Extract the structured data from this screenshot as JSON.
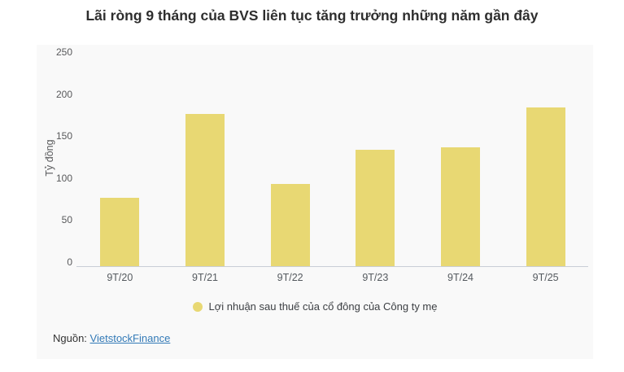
{
  "title": "Lãi ròng 9 tháng của BVS liên tục tăng trưởng những năm gần đây",
  "chart_data": {
    "type": "bar",
    "categories": [
      "9T/20",
      "9T/21",
      "9T/22",
      "9T/23",
      "9T/24",
      "9T/25"
    ],
    "values": [
      82,
      181,
      98,
      139,
      142,
      189
    ],
    "title": "Lãi ròng 9 tháng của BVS liên tục tăng trưởng những năm gần đây",
    "xlabel": "",
    "ylabel": "Tỷ đồng",
    "ylim": [
      0,
      250
    ],
    "yticks": [
      0,
      50,
      100,
      150,
      200,
      250
    ],
    "grid": false,
    "bar_color": "#e8d873",
    "legend_position": "bottom",
    "series_name": "Lợi nhuận sau thuế của cổ đông của Công ty mẹ"
  },
  "legend": {
    "label": "Lợi nhuận sau thuế của cổ đông của Công ty mẹ",
    "marker_color": "#e8d873"
  },
  "source": {
    "prefix": "Nguồn:",
    "link_label": "VietstockFinance",
    "link_color": "#337ab7"
  },
  "colors": {
    "bar": "#e8d873",
    "panel_background": "#f9f9f9",
    "axis_line": "#c9ced6",
    "link": "#337ab7"
  }
}
